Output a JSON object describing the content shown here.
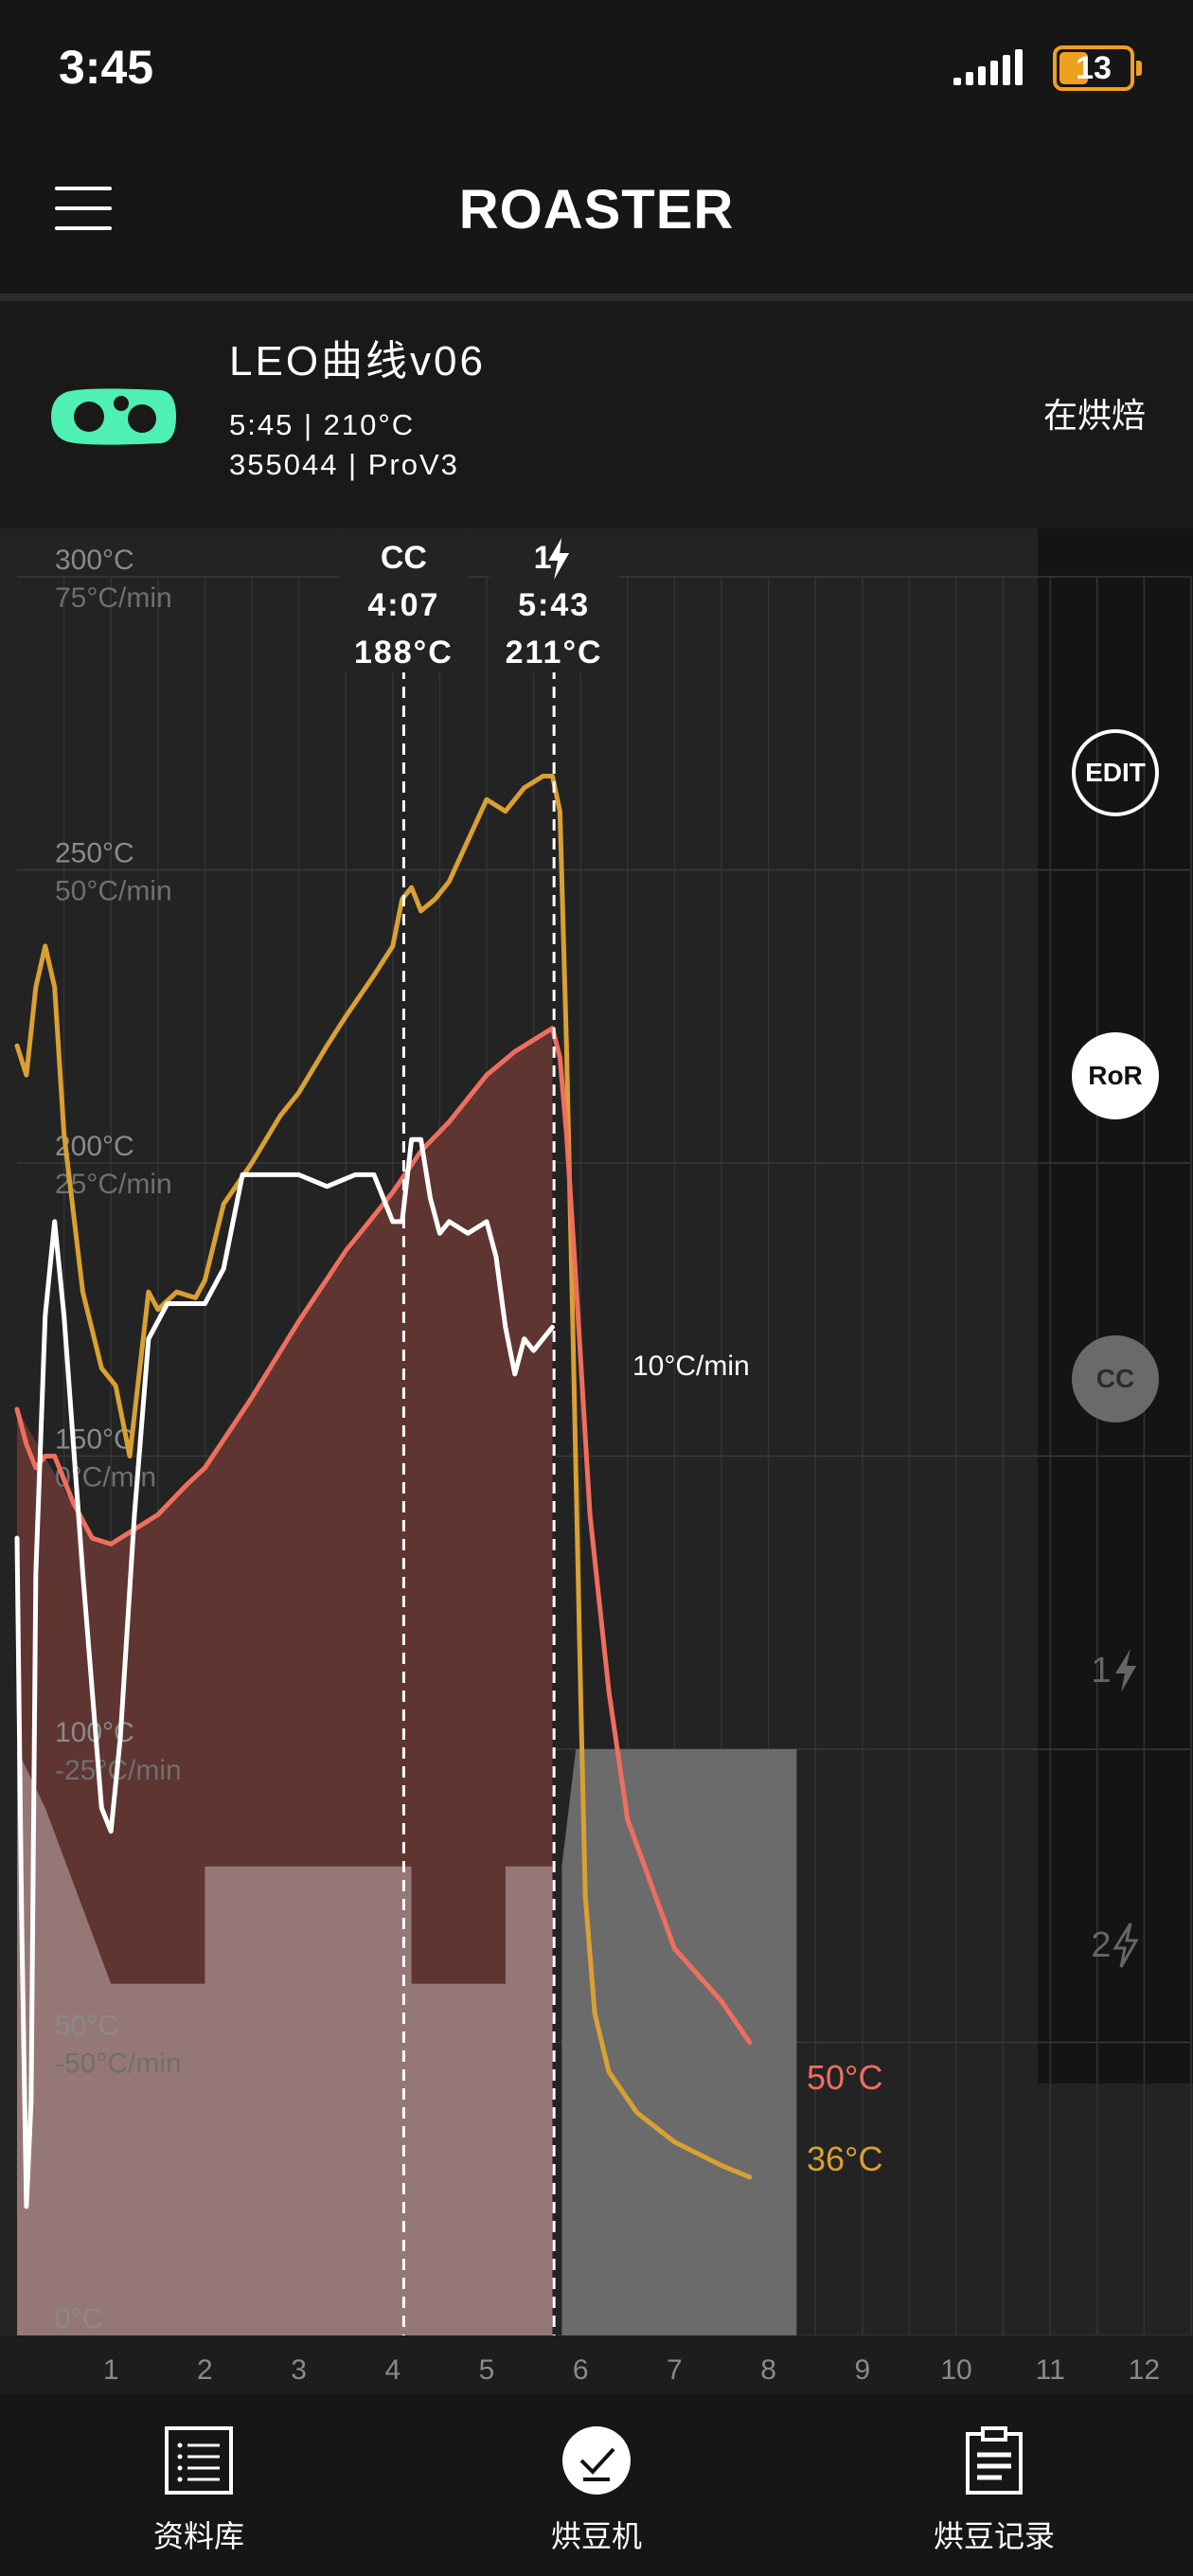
{
  "status_bar": {
    "time": "3:45",
    "battery": "13"
  },
  "header": {
    "title": "ROASTER"
  },
  "profile": {
    "name": "LEO曲线v06",
    "time_temp": "5:45 | 210°C",
    "device": "355044 | ProV3",
    "status": "在烘焙"
  },
  "side_buttons": {
    "edit": "EDIT",
    "ror": "RoR",
    "cc": "CC",
    "fc1": "1",
    "fc2": "2"
  },
  "markers": [
    {
      "label": "CC",
      "time": "4:07",
      "temp": "188°C",
      "x": 4.117
    },
    {
      "label": "1",
      "time": "5:43",
      "temp": "211°C",
      "x": 5.717
    }
  ],
  "readouts": {
    "ror": "10°C/min",
    "temp_red": "50°C",
    "temp_orange": "36°C"
  },
  "colors": {
    "bean_temp": "#d9a033",
    "env_temp": "#ef6e5e",
    "ror": "#ffffff",
    "heat_area": "#5e3531",
    "fan_area": "#957876",
    "cool_area": "#6b6b6b"
  },
  "nav": [
    {
      "label": "资料库",
      "icon": "list-icon"
    },
    {
      "label": "烘豆机",
      "icon": "check-icon"
    },
    {
      "label": "烘豆记录",
      "icon": "clipboard-icon"
    }
  ],
  "chart_data": {
    "type": "line",
    "x_axis": {
      "unit": "min",
      "range": [
        0,
        12.5
      ],
      "ticks": [
        1,
        2,
        3,
        4,
        5,
        6,
        7,
        8,
        9,
        10,
        11,
        12
      ]
    },
    "y_axis_temp": {
      "unit": "°C",
      "range": [
        0,
        300
      ],
      "ticks": [
        "300°C",
        "250°C",
        "200°C",
        "150°C",
        "100°C",
        "50°C",
        "0°C"
      ]
    },
    "y_axis_ror": {
      "unit": "°C/min",
      "range": [
        -75,
        75
      ],
      "ticks": [
        "75°C/min",
        "50°C/min",
        "25°C/min",
        "0°C/min",
        "-25°C/min",
        "-50°C/min"
      ]
    },
    "series": [
      {
        "color": "#d9a033",
        "axis": "temp",
        "points": [
          [
            0,
            220
          ],
          [
            0.1,
            215
          ],
          [
            0.2,
            230
          ],
          [
            0.3,
            237
          ],
          [
            0.4,
            230
          ],
          [
            0.5,
            205
          ],
          [
            0.7,
            178
          ],
          [
            0.9,
            165
          ],
          [
            1.05,
            162
          ],
          [
            1.2,
            150
          ],
          [
            1.4,
            178
          ],
          [
            1.5,
            175
          ],
          [
            1.7,
            178
          ],
          [
            1.9,
            177
          ],
          [
            2.0,
            180
          ],
          [
            2.2,
            193
          ],
          [
            2.5,
            200
          ],
          [
            2.8,
            208
          ],
          [
            3.0,
            212
          ],
          [
            3.3,
            220
          ],
          [
            3.5,
            225
          ],
          [
            3.8,
            232
          ],
          [
            4.0,
            237
          ],
          [
            4.1,
            245
          ],
          [
            4.2,
            247
          ],
          [
            4.3,
            243
          ],
          [
            4.45,
            245
          ],
          [
            4.6,
            248
          ],
          [
            4.8,
            255
          ],
          [
            5.0,
            262
          ],
          [
            5.2,
            260
          ],
          [
            5.4,
            264
          ],
          [
            5.6,
            266
          ],
          [
            5.7,
            266
          ],
          [
            5.78,
            260
          ],
          [
            5.85,
            220
          ],
          [
            5.92,
            170
          ],
          [
            6.0,
            110
          ],
          [
            6.05,
            75
          ],
          [
            6.15,
            55
          ],
          [
            6.3,
            45
          ],
          [
            6.6,
            38
          ],
          [
            7.0,
            33
          ],
          [
            7.5,
            29
          ],
          [
            7.8,
            27
          ]
        ]
      },
      {
        "color": "#ef6e5e",
        "axis": "temp",
        "points": [
          [
            0,
            158
          ],
          [
            0.1,
            152
          ],
          [
            0.2,
            148
          ],
          [
            0.3,
            150
          ],
          [
            0.4,
            150
          ],
          [
            0.6,
            142
          ],
          [
            0.8,
            136
          ],
          [
            1.0,
            135
          ],
          [
            1.2,
            137
          ],
          [
            1.5,
            140
          ],
          [
            1.8,
            145
          ],
          [
            2.0,
            148
          ],
          [
            2.5,
            160
          ],
          [
            3.0,
            173
          ],
          [
            3.5,
            185
          ],
          [
            4.0,
            195
          ],
          [
            4.3,
            202
          ],
          [
            4.6,
            207
          ],
          [
            5.0,
            215
          ],
          [
            5.3,
            219
          ],
          [
            5.6,
            222
          ],
          [
            5.7,
            223
          ],
          [
            5.78,
            218
          ],
          [
            5.85,
            205
          ],
          [
            5.95,
            180
          ],
          [
            6.1,
            140
          ],
          [
            6.3,
            110
          ],
          [
            6.5,
            88
          ],
          [
            7.0,
            66
          ],
          [
            7.5,
            57
          ],
          [
            7.8,
            50
          ]
        ]
      },
      {
        "color": "#ffffff",
        "axis": "ror",
        "points": [
          [
            0,
            -7
          ],
          [
            0.05,
            -40
          ],
          [
            0.1,
            -64
          ],
          [
            0.15,
            -55
          ],
          [
            0.2,
            -10
          ],
          [
            0.3,
            12
          ],
          [
            0.4,
            20
          ],
          [
            0.5,
            12
          ],
          [
            0.7,
            -10
          ],
          [
            0.9,
            -30
          ],
          [
            1.0,
            -32
          ],
          [
            1.1,
            -24
          ],
          [
            1.25,
            -5
          ],
          [
            1.4,
            10
          ],
          [
            1.6,
            13
          ],
          [
            1.8,
            13
          ],
          [
            2.0,
            13
          ],
          [
            2.2,
            16
          ],
          [
            2.4,
            24
          ],
          [
            2.6,
            24
          ],
          [
            2.8,
            24
          ],
          [
            3.0,
            24
          ],
          [
            3.3,
            23
          ],
          [
            3.6,
            24
          ],
          [
            3.8,
            24
          ],
          [
            4.0,
            20
          ],
          [
            4.1,
            20
          ],
          [
            4.2,
            27
          ],
          [
            4.3,
            27
          ],
          [
            4.4,
            22
          ],
          [
            4.5,
            19
          ],
          [
            4.6,
            20
          ],
          [
            4.8,
            19
          ],
          [
            5.0,
            20
          ],
          [
            5.1,
            17
          ],
          [
            5.2,
            11
          ],
          [
            5.3,
            7
          ],
          [
            5.4,
            10
          ],
          [
            5.5,
            9
          ],
          [
            5.6,
            10
          ],
          [
            5.7,
            11
          ]
        ]
      }
    ],
    "areas": [
      {
        "name": "heat",
        "color": "#5e3531",
        "points": [
          [
            0,
            158
          ],
          [
            0.8,
            136
          ],
          [
            1.0,
            135
          ],
          [
            1.5,
            140
          ],
          [
            2.0,
            148
          ],
          [
            3.0,
            173
          ],
          [
            4.0,
            195
          ],
          [
            5.0,
            215
          ],
          [
            5.7,
            223
          ],
          [
            5.7,
            80
          ],
          [
            5.2,
            80
          ],
          [
            5.2,
            60
          ],
          [
            4.2,
            60
          ],
          [
            4.2,
            80
          ],
          [
            2.0,
            80
          ],
          [
            2.0,
            60
          ],
          [
            1.0,
            60
          ],
          [
            0.3,
            90
          ],
          [
            0,
            100
          ]
        ]
      },
      {
        "name": "fan",
        "color": "#957876",
        "points": [
          [
            0,
            100
          ],
          [
            0.3,
            90
          ],
          [
            1.0,
            60
          ],
          [
            2.0,
            60
          ],
          [
            2.0,
            80
          ],
          [
            4.2,
            80
          ],
          [
            4.2,
            60
          ],
          [
            5.2,
            60
          ],
          [
            5.2,
            80
          ],
          [
            5.7,
            80
          ],
          [
            5.7,
            0
          ],
          [
            0,
            0
          ]
        ]
      },
      {
        "name": "cool",
        "color": "#6b6b6b",
        "points": [
          [
            5.8,
            0
          ],
          [
            5.8,
            80
          ],
          [
            5.95,
            100
          ],
          [
            8.3,
            100
          ],
          [
            8.3,
            0
          ]
        ]
      }
    ]
  }
}
